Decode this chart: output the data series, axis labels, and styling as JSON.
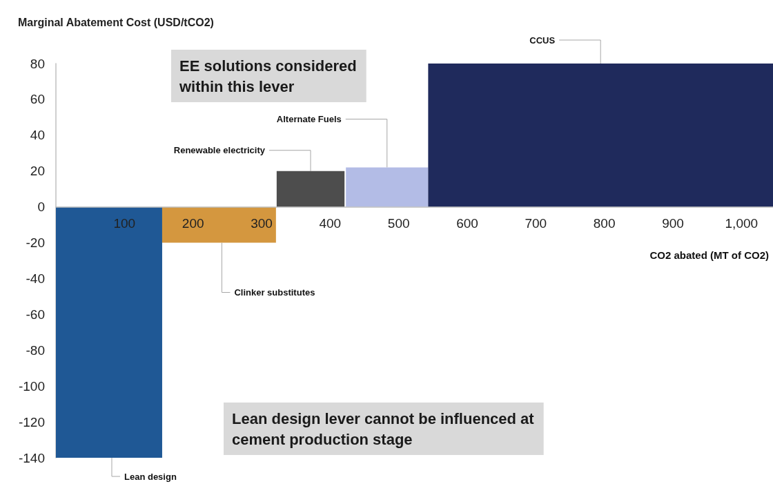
{
  "chart_data": {
    "type": "area",
    "ylabel": "Marginal Abatement Cost (USD/tCO2)",
    "xlabel": "CO2 abated (MT of CO2)",
    "xlim": [
      0,
      1046
    ],
    "xticks": [
      100,
      200,
      300,
      400,
      500,
      600,
      700,
      800,
      900,
      {
        "value": 1000,
        "label": "1,000"
      }
    ],
    "ylim": [
      -140,
      80
    ],
    "yticks": [
      -140,
      -120,
      -100,
      -80,
      -60,
      -40,
      -20,
      0,
      20,
      40,
      60,
      80
    ],
    "marker": "none",
    "series": [
      {
        "name": "Lean design",
        "color": "#1f5895",
        "x": [
          0,
          155
        ],
        "values": [
          -140,
          -140
        ]
      },
      {
        "name": "Clinker substitutes",
        "color": "#d4973f",
        "x": [
          155,
          321
        ],
        "values": [
          -20,
          -20
        ]
      },
      {
        "name": "Renewable electricity",
        "color": "#4d4d4d",
        "x": [
          322,
          421
        ],
        "values": [
          20,
          20
        ]
      },
      {
        "name": "Alternate Fuels",
        "color": "#b3bce6",
        "x": [
          423,
          543
        ],
        "values": [
          22,
          22
        ]
      },
      {
        "name": "CCUS",
        "color": "#1f2a5c",
        "x": [
          543,
          1046
        ],
        "values": [
          80,
          80
        ]
      }
    ],
    "annotations": [
      "EE solutions considered\nwithin this lever",
      "Lean design lever cannot be influenced at\ncement production stage"
    ]
  }
}
